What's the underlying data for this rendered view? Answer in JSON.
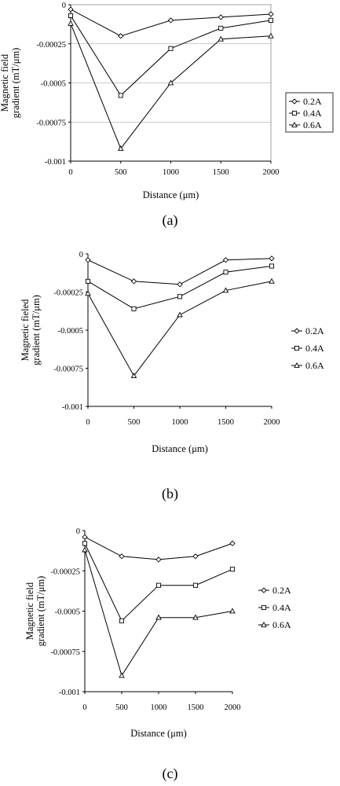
{
  "captions": [
    "(a)",
    "(b)",
    "(c)"
  ],
  "chart_data": [
    {
      "type": "line",
      "xlabel": "Distance (μm)",
      "ylabel": [
        "Magnetic field",
        "gradient (mT/μm)"
      ],
      "x": [
        0,
        500,
        1000,
        1500,
        2000
      ],
      "xticks": [
        "0",
        "500",
        "1000",
        "1500",
        "2000"
      ],
      "yticks": [
        "0",
        "-0.00025",
        "-0.0005",
        "-0.00075",
        "-0.001"
      ],
      "ylim": [
        -0.001,
        0
      ],
      "grid": "horizontal",
      "legend": "right",
      "series": [
        {
          "name": "0.2A",
          "marker": "diamond",
          "values": [
            -3e-05,
            -0.0002,
            -0.0001,
            -8e-05,
            -6e-05
          ]
        },
        {
          "name": "0.4A",
          "marker": "square",
          "values": [
            -7e-05,
            -0.00058,
            -0.00028,
            -0.00015,
            -0.0001
          ]
        },
        {
          "name": "0.6A",
          "marker": "triangle",
          "values": [
            -0.00012,
            -0.00092,
            -0.0005,
            -0.00022,
            -0.0002
          ]
        }
      ]
    },
    {
      "type": "line",
      "xlabel": "Distance (μm)",
      "ylabel": [
        "Magnetic fieled",
        "gradient (mT/μm)"
      ],
      "x": [
        0,
        500,
        1000,
        1500,
        2000
      ],
      "xticks": [
        "0",
        "500",
        "1000",
        "1500",
        "2000"
      ],
      "yticks": [
        "0",
        "-0.00025",
        "-0.0005",
        "-0.00075",
        "-0.001"
      ],
      "ylim": [
        -0.001,
        0
      ],
      "grid": "none",
      "legend": "right",
      "series": [
        {
          "name": "0.2A",
          "marker": "diamond",
          "values": [
            -4e-05,
            -0.00018,
            -0.0002,
            -4e-05,
            -3e-05
          ]
        },
        {
          "name": "0.4A",
          "marker": "square",
          "values": [
            -0.00018,
            -0.00036,
            -0.00028,
            -0.00012,
            -8e-05
          ]
        },
        {
          "name": "0.6A",
          "marker": "triangle",
          "values": [
            -0.00026,
            -0.0008,
            -0.0004,
            -0.00024,
            -0.00018
          ]
        }
      ]
    },
    {
      "type": "line",
      "xlabel": "Distance (μm)",
      "ylabel": [
        "Magnetic field",
        "gradient (mT/μm)"
      ],
      "x": [
        0,
        500,
        1000,
        1500,
        2000
      ],
      "xticks": [
        "0",
        "500",
        "1000",
        "1500",
        "2000"
      ],
      "yticks": [
        "0",
        "-0.00025",
        "-0.0005",
        "-0.00075",
        "-0.001"
      ],
      "ylim": [
        -0.001,
        0
      ],
      "grid": "none",
      "legend": "right",
      "series": [
        {
          "name": "0.2A",
          "marker": "diamond",
          "values": [
            -4e-05,
            -0.00016,
            -0.00018,
            -0.00016,
            -8e-05
          ]
        },
        {
          "name": "0.4A",
          "marker": "square",
          "values": [
            -8e-05,
            -0.00056,
            -0.00034,
            -0.00034,
            -0.00024
          ]
        },
        {
          "name": "0.6A",
          "marker": "triangle",
          "values": [
            -0.00012,
            -0.0009,
            -0.00054,
            -0.00054,
            -0.0005
          ]
        }
      ]
    }
  ]
}
